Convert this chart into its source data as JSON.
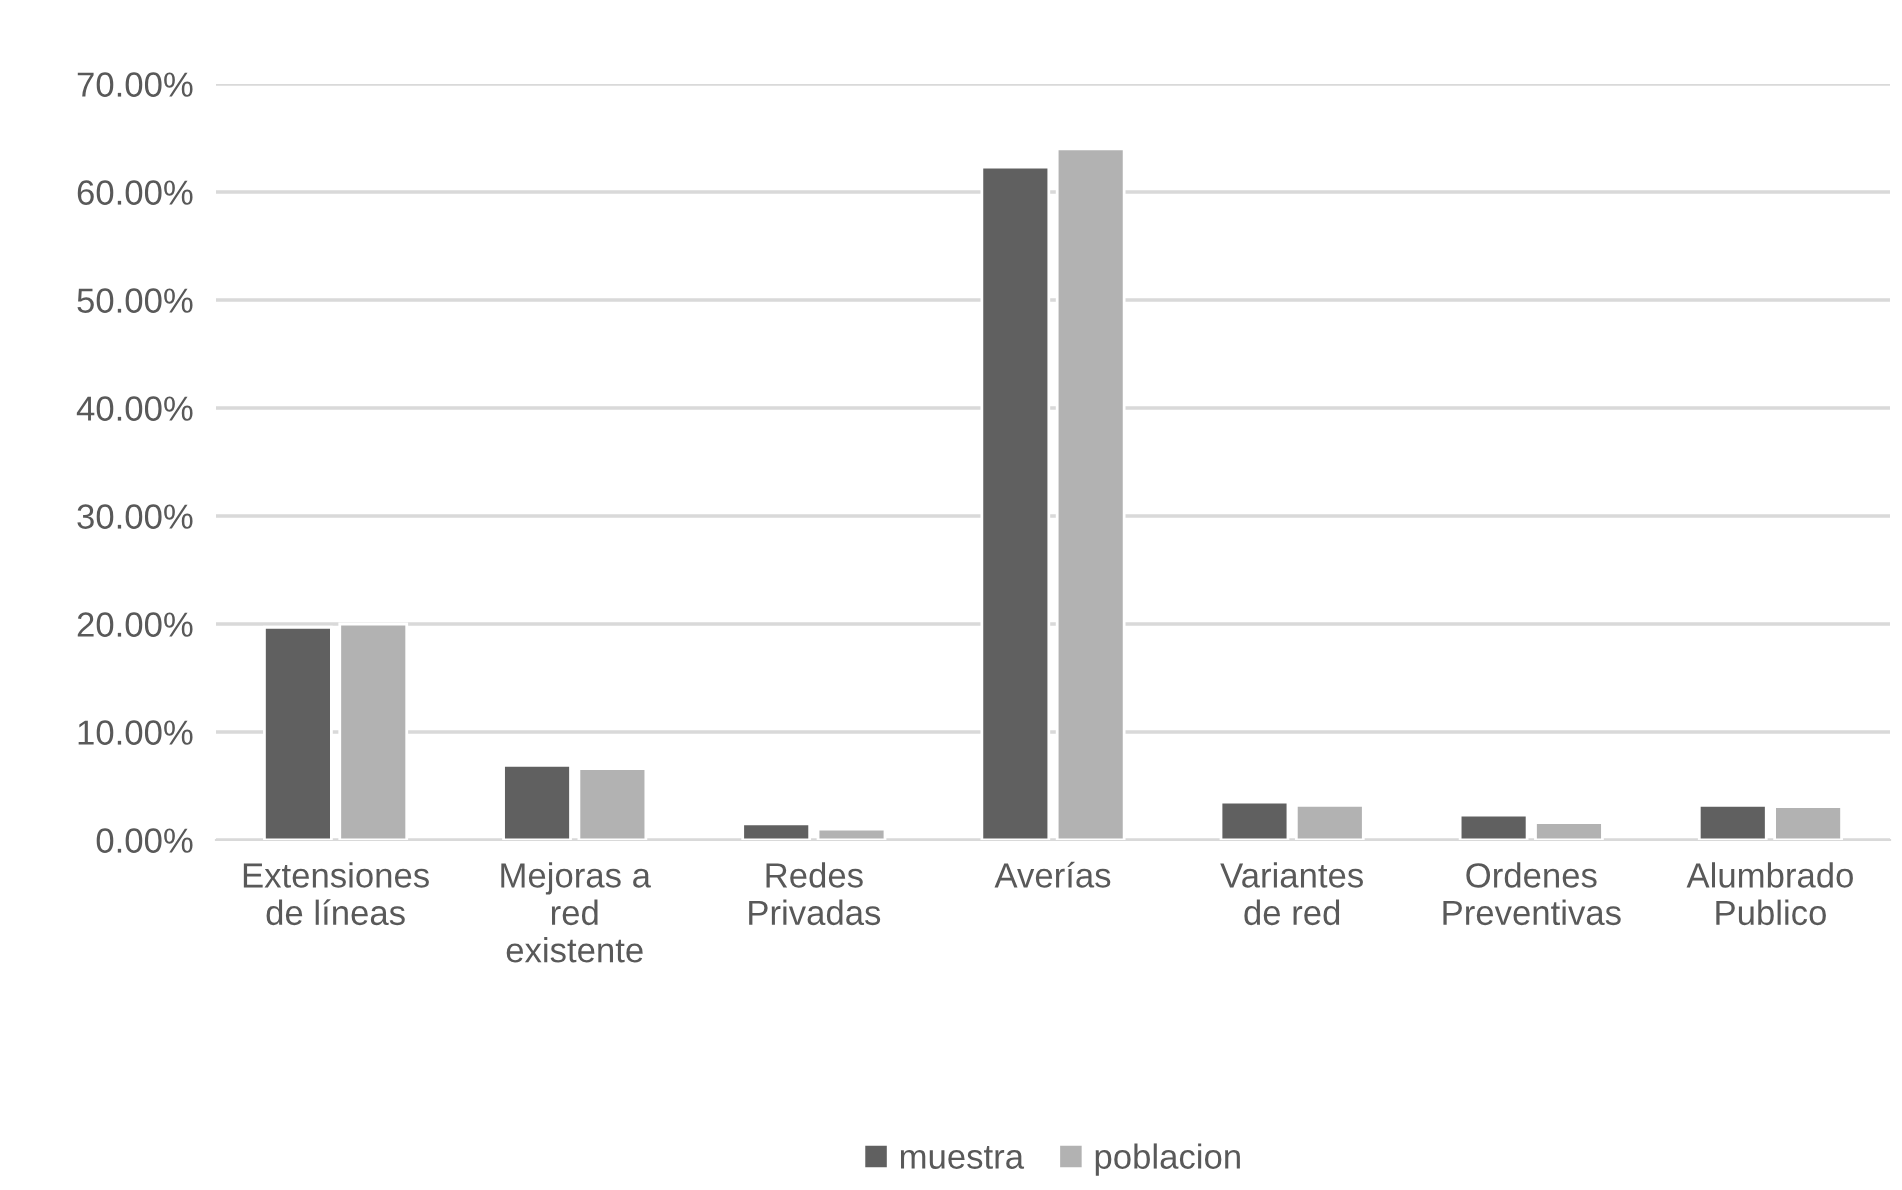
{
  "chart_data": {
    "type": "bar",
    "categories": [
      "Extensiones\nde líneas",
      "Mejoras a\nred\nexistente",
      "Redes\nPrivadas",
      "Averías",
      "Variantes\nde red",
      "Ordenes\nPreventivas",
      "Alumbrado\nPublico"
    ],
    "series": [
      {
        "name": "muestra",
        "color": "#606060",
        "values": [
          19.7,
          6.9,
          1.5,
          62.3,
          3.5,
          2.3,
          3.2
        ]
      },
      {
        "name": "poblacion",
        "color": "#b2b2b2",
        "values": [
          20.0,
          6.6,
          1.0,
          64.0,
          3.2,
          1.6,
          3.1
        ]
      }
    ],
    "ylim": [
      0,
      70
    ],
    "yticks": [
      {
        "value": 0,
        "label": "0.00%"
      },
      {
        "value": 10,
        "label": "10.00%"
      },
      {
        "value": 20,
        "label": "20.00%"
      },
      {
        "value": 30,
        "label": "30.00%"
      },
      {
        "value": 40,
        "label": "40.00%"
      },
      {
        "value": 50,
        "label": "50.00%"
      },
      {
        "value": 60,
        "label": "60.00%"
      },
      {
        "value": 70,
        "label": "70.00%"
      }
    ],
    "grid": "y",
    "legend": "bottom"
  }
}
